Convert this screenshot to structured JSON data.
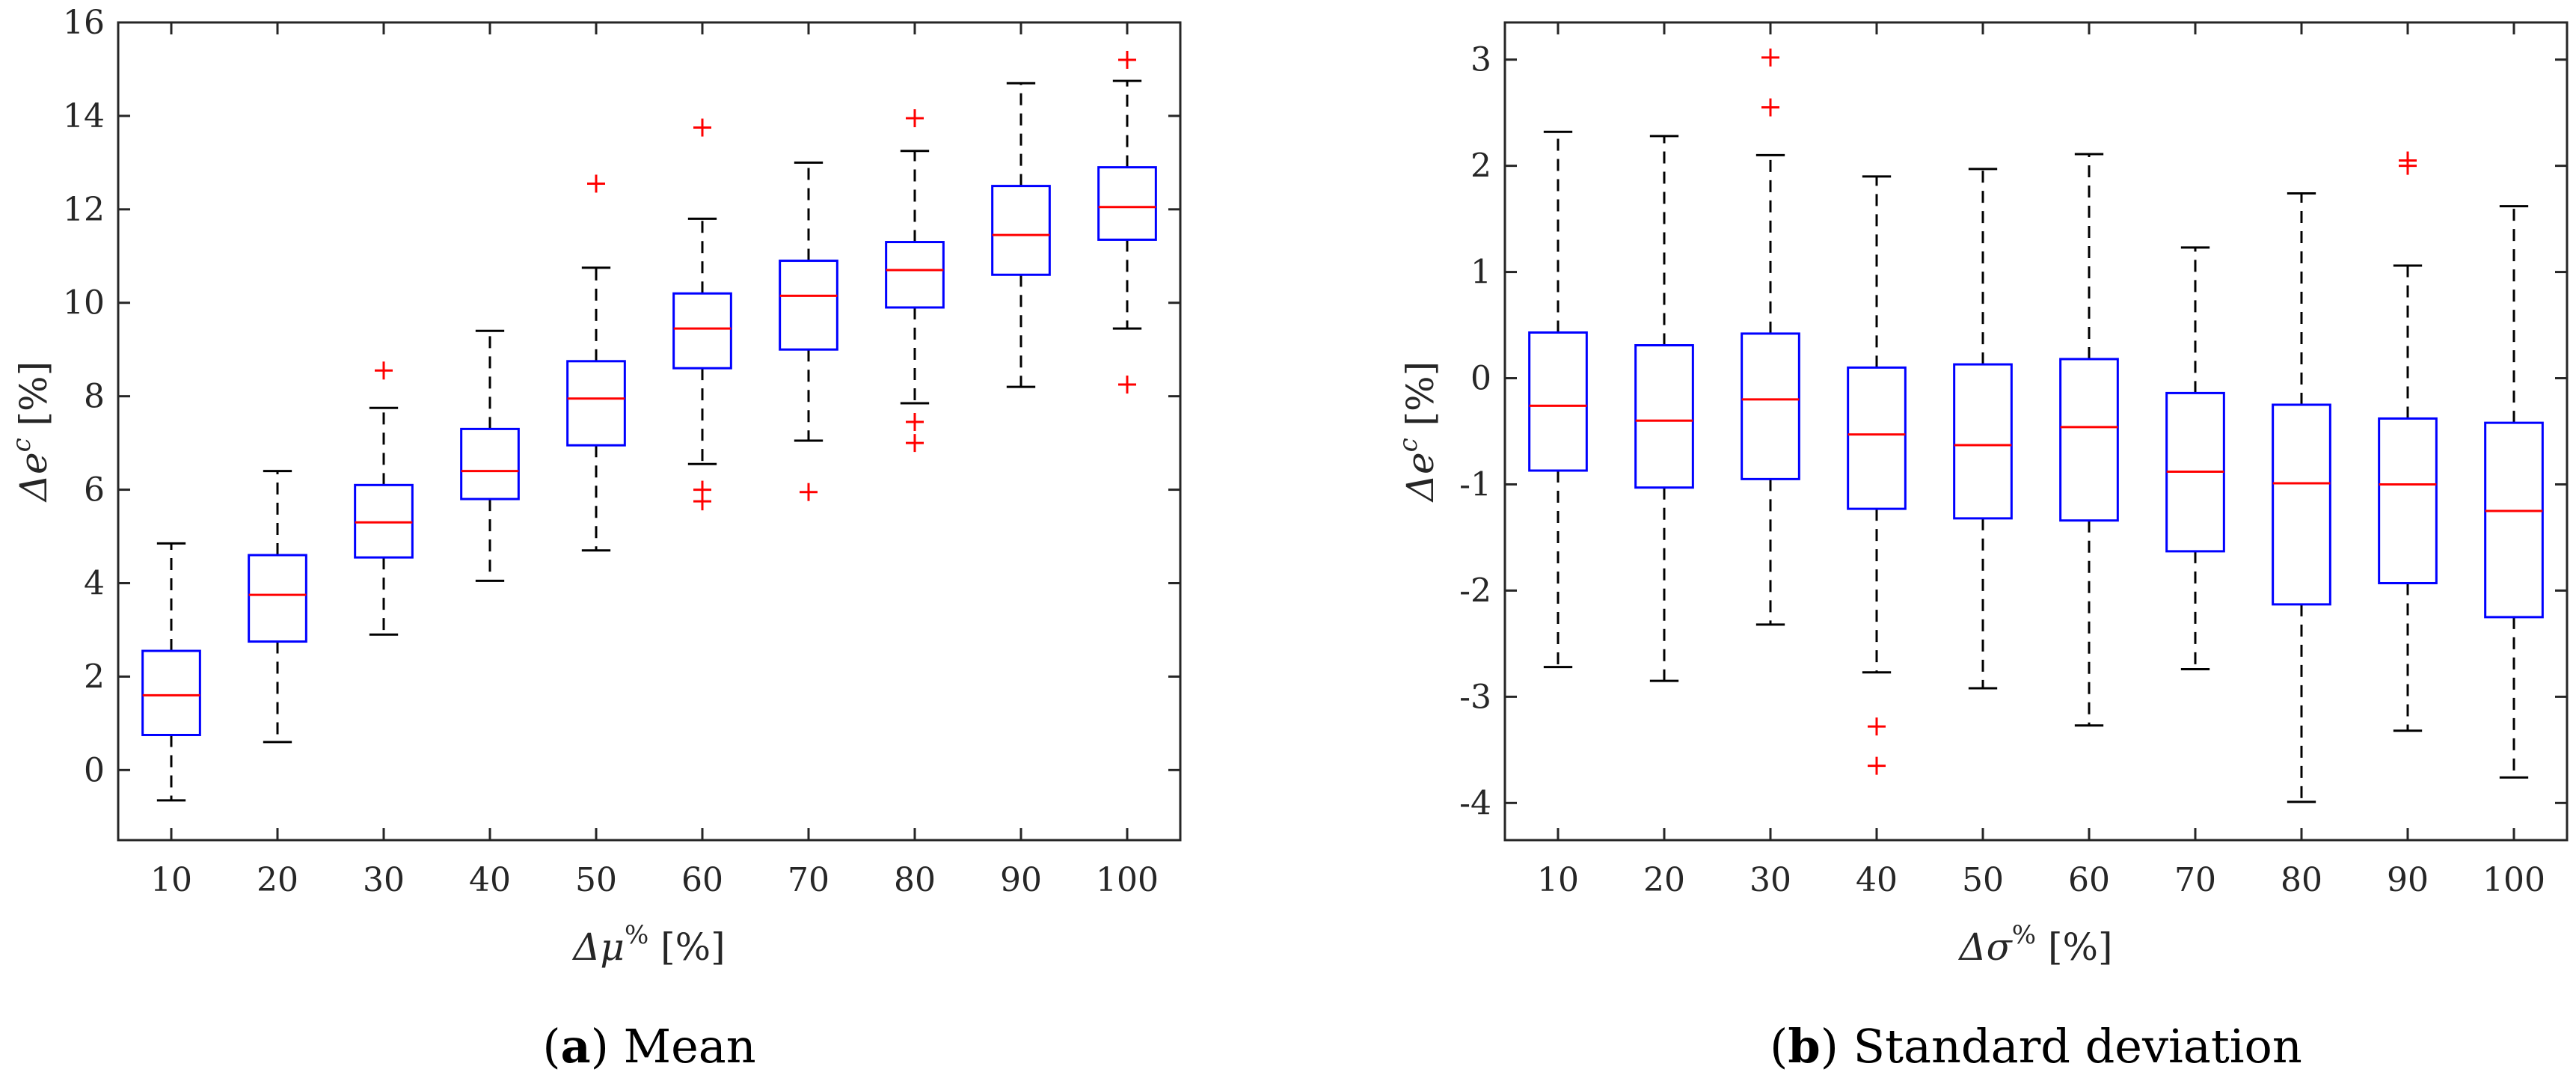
{
  "chart_data": [
    {
      "type": "boxplot",
      "panel": "a",
      "caption_letter": "a",
      "caption_text": " Mean",
      "xlabel_base": "Δμ",
      "xlabel_sup": "%",
      "xlabel_unit": " [%]",
      "ylabel_base": "Δe",
      "ylabel_sup": "c",
      "ylabel_unit": " [%]",
      "ylim": [
        -1.5,
        16
      ],
      "yticks": [
        0,
        2,
        4,
        6,
        8,
        10,
        12,
        14,
        16
      ],
      "categories": [
        "10",
        "20",
        "30",
        "40",
        "50",
        "60",
        "70",
        "80",
        "90",
        "100"
      ],
      "boxes": [
        {
          "whisker_low": -0.65,
          "q1": 0.75,
          "median": 1.6,
          "q3": 2.55,
          "whisker_high": 4.85,
          "outliers": []
        },
        {
          "whisker_low": 0.6,
          "q1": 2.75,
          "median": 3.75,
          "q3": 4.6,
          "whisker_high": 6.4,
          "outliers": []
        },
        {
          "whisker_low": 2.9,
          "q1": 4.55,
          "median": 5.3,
          "q3": 6.1,
          "whisker_high": 7.75,
          "outliers": [
            8.55
          ]
        },
        {
          "whisker_low": 4.05,
          "q1": 5.8,
          "median": 6.4,
          "q3": 7.3,
          "whisker_high": 9.4,
          "outliers": []
        },
        {
          "whisker_low": 4.7,
          "q1": 6.95,
          "median": 7.95,
          "q3": 8.75,
          "whisker_high": 10.75,
          "outliers": [
            12.55
          ]
        },
        {
          "whisker_low": 6.55,
          "q1": 8.6,
          "median": 9.45,
          "q3": 10.2,
          "whisker_high": 11.8,
          "outliers": [
            13.75,
            6.0,
            5.75
          ]
        },
        {
          "whisker_low": 7.05,
          "q1": 9.0,
          "median": 10.15,
          "q3": 10.9,
          "whisker_high": 13.0,
          "outliers": [
            5.95
          ]
        },
        {
          "whisker_low": 7.85,
          "q1": 9.9,
          "median": 10.7,
          "q3": 11.3,
          "whisker_high": 13.25,
          "outliers": [
            13.95,
            7.45,
            7.0
          ]
        },
        {
          "whisker_low": 8.2,
          "q1": 10.6,
          "median": 11.45,
          "q3": 12.5,
          "whisker_high": 14.7,
          "outliers": []
        },
        {
          "whisker_low": 9.45,
          "q1": 11.35,
          "median": 12.05,
          "q3": 12.9,
          "whisker_high": 14.75,
          "outliers": [
            15.2,
            8.25
          ]
        }
      ]
    },
    {
      "type": "boxplot",
      "panel": "b",
      "caption_letter": "b",
      "caption_text": " Standard deviation",
      "xlabel_base": "Δσ",
      "xlabel_sup": "%",
      "xlabel_unit": " [%]",
      "ylabel_base": "Δe",
      "ylabel_sup": "c",
      "ylabel_unit": " [%]",
      "ylim": [
        -4.35,
        3.35
      ],
      "yticks": [
        -4,
        -3,
        -2,
        -1,
        0,
        1,
        2,
        3
      ],
      "categories": [
        "10",
        "20",
        "30",
        "40",
        "50",
        "60",
        "70",
        "80",
        "90",
        "100"
      ],
      "boxes": [
        {
          "whisker_low": -2.72,
          "q1": -0.87,
          "median": -0.26,
          "q3": 0.43,
          "whisker_high": 2.32,
          "outliers": []
        },
        {
          "whisker_low": -2.85,
          "q1": -1.03,
          "median": -0.4,
          "q3": 0.31,
          "whisker_high": 2.28,
          "outliers": []
        },
        {
          "whisker_low": -2.32,
          "q1": -0.95,
          "median": -0.2,
          "q3": 0.42,
          "whisker_high": 2.1,
          "outliers": [
            3.02,
            2.55
          ]
        },
        {
          "whisker_low": -2.77,
          "q1": -1.23,
          "median": -0.53,
          "q3": 0.1,
          "whisker_high": 1.9,
          "outliers": [
            -3.28,
            -3.65
          ]
        },
        {
          "whisker_low": -2.92,
          "q1": -1.32,
          "median": -0.63,
          "q3": 0.13,
          "whisker_high": 1.97,
          "outliers": []
        },
        {
          "whisker_low": -3.27,
          "q1": -1.34,
          "median": -0.46,
          "q3": 0.18,
          "whisker_high": 2.11,
          "outliers": []
        },
        {
          "whisker_low": -2.74,
          "q1": -1.63,
          "median": -0.88,
          "q3": -0.14,
          "whisker_high": 1.23,
          "outliers": []
        },
        {
          "whisker_low": -3.99,
          "q1": -2.13,
          "median": -0.99,
          "q3": -0.25,
          "whisker_high": 1.74,
          "outliers": []
        },
        {
          "whisker_low": -3.32,
          "q1": -1.93,
          "median": -1.0,
          "q3": -0.38,
          "whisker_high": 1.06,
          "outliers": [
            2.05,
            2.0
          ]
        },
        {
          "whisker_low": -3.76,
          "q1": -2.25,
          "median": -1.25,
          "q3": -0.42,
          "whisker_high": 1.62,
          "outliers": []
        }
      ]
    }
  ]
}
